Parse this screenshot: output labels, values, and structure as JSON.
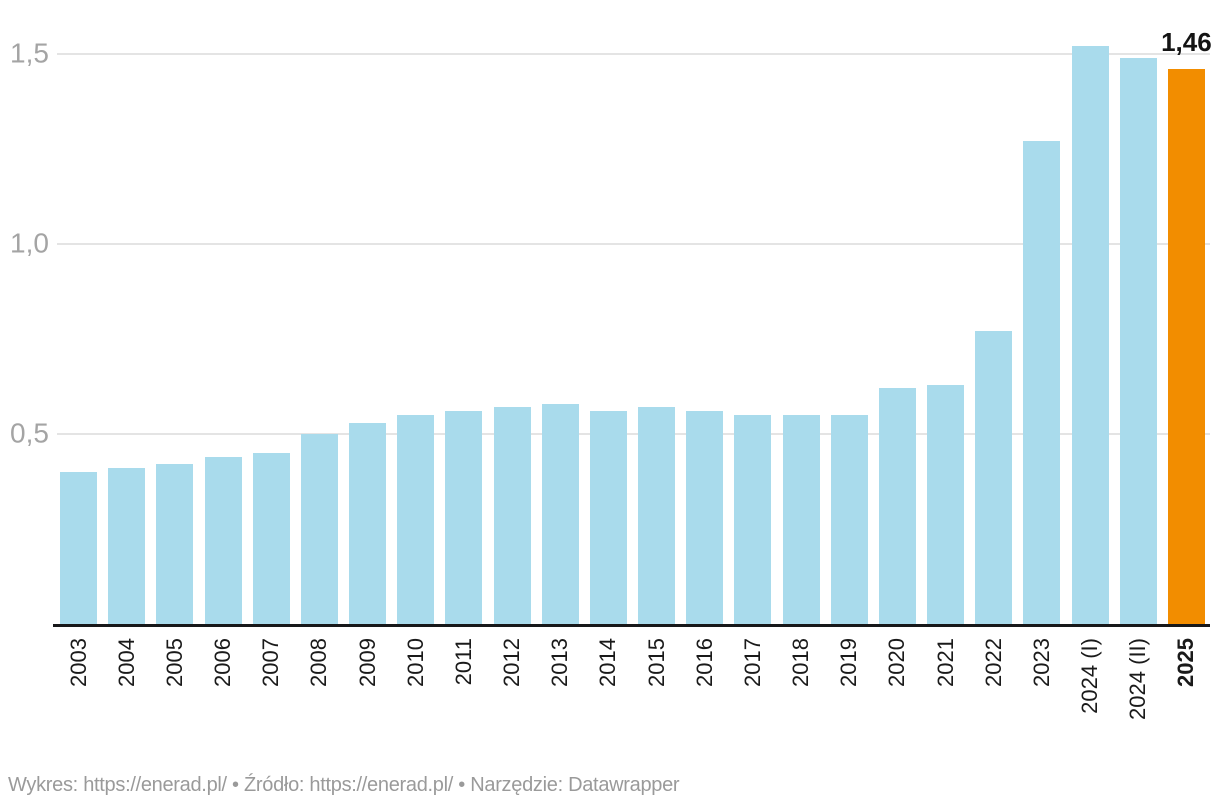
{
  "chart_data": {
    "type": "bar",
    "title": "",
    "categories": [
      "2003",
      "2004",
      "2005",
      "2006",
      "2007",
      "2008",
      "2009",
      "2010",
      "2011",
      "2012",
      "2013",
      "2014",
      "2015",
      "2016",
      "2017",
      "2018",
      "2019",
      "2020",
      "2021",
      "2022",
      "2023",
      "2024 (I)",
      "2024 (II)",
      "2025"
    ],
    "values": [
      0.4,
      0.41,
      0.42,
      0.44,
      0.45,
      0.5,
      0.53,
      0.55,
      0.56,
      0.57,
      0.58,
      0.56,
      0.57,
      0.56,
      0.55,
      0.55,
      0.55,
      0.62,
      0.63,
      0.77,
      1.27,
      1.52,
      1.49,
      1.46
    ],
    "yticks": [
      {
        "value": 0.5,
        "label": "0,5"
      },
      {
        "value": 1.0,
        "label": "1,0"
      },
      {
        "value": 1.5,
        "label": "1,5"
      }
    ],
    "ylim": [
      0,
      1.58
    ],
    "grid": true,
    "legend_position": "none",
    "xlabel": "",
    "ylabel": "",
    "bar_color": "#a9dbec",
    "highlight_color": "#f28d00",
    "highlight_index": 23,
    "highlight_label": "1,46",
    "bold_categories": [
      "2025"
    ]
  },
  "footer": {
    "parts": [
      {
        "text": "Wykres: "
      },
      {
        "text": "https://enerad.pl/"
      },
      {
        "text": " • Źródło: "
      },
      {
        "text": "https://enerad.pl/"
      },
      {
        "text": " • Narzędzie: "
      },
      {
        "text": "Datawrapper"
      }
    ]
  }
}
